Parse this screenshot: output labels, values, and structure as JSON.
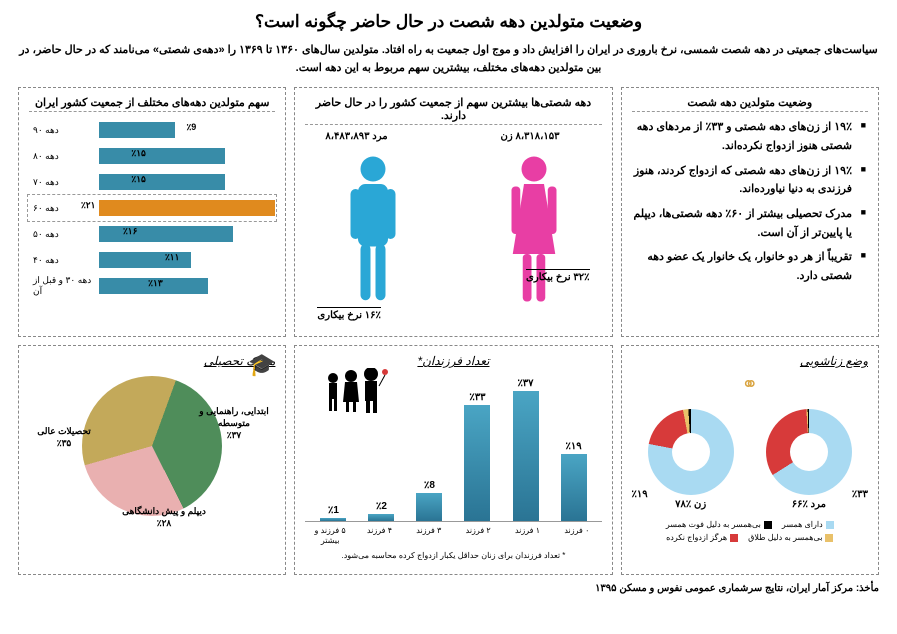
{
  "title": "وضعیت متولدین دهه شصت در حال حاضر چگونه است؟",
  "subtitle": "سیاست‌های جمعیتی در دهه شصت شمسی، نرخ باروری در ایران را افزایش داد و موج اول جمعیت به راه افتاد. متولدین سال‌های ۱۳۶۰ تا ۱۳۶۹ را «دهه‌ی شصتی» می‌نامند که در حال حاضر، در بین متولدین دهه‌های مختلف، بیشترین سهم مربوط به این دهه است.",
  "panel_status": {
    "title": "وضعیت متولدین دهه شصت",
    "bullets": [
      "۱۹٪ از زن‌های دهه شصتی و ۳۳٪ از مردهای دهه شصتی هنوز ازدواج نکرده‌اند.",
      "۱۹٪ از زن‌های دهه شصتی که ازدواج کردند، هنوز فرزندی به دنیا نیاورده‌اند.",
      "مدرک تحصیلی بیشتر از ۶۰٪ دهه شصتی‌ها، دیپلم یا پایین‌تر از آن است.",
      "تقریباً از هر دو خانوار، یک خانوار یک عضو دهه شصتی دارد."
    ]
  },
  "panel_center": {
    "title": "دهه شصتی‌ها بیشترین سهم از جمعیت کشور را در حال حاضر دارند.",
    "male_top": "مرد   ۸،۴۸۳،۸۹۳",
    "female_top": "۸،۳۱۸،۱۵۳   زن",
    "male_unemp": "۱۶٪ نرخ بیکاری",
    "female_unemp": "۳۲٪ نرخ بیکاری",
    "male_color": "#2aa7d6",
    "female_color": "#e83ea4"
  },
  "panel_hbar": {
    "title": "سهم متولدین دهه‌های مختلف از جمعیت کشور ایران",
    "type": "horizontal_bar",
    "max": 21,
    "bar_color": "#388ca8",
    "highlight_color": "#e08a1e",
    "rows": [
      {
        "label": "دهه ۹۰",
        "val": "٪9",
        "pct": 9,
        "hl": false
      },
      {
        "label": "دهه ۸۰",
        "val": "٪۱۵",
        "pct": 15,
        "hl": false
      },
      {
        "label": "دهه ۷۰",
        "val": "٪۱۵",
        "pct": 15,
        "hl": false
      },
      {
        "label": "دهه ۶۰",
        "val": "٪۲۱",
        "pct": 21,
        "hl": true
      },
      {
        "label": "دهه ۵۰",
        "val": "٪۱۶",
        "pct": 16,
        "hl": false
      },
      {
        "label": "دهه ۴۰",
        "val": "٪۱۱",
        "pct": 11,
        "hl": false
      },
      {
        "label": "دهه ۳۰ و قبل از آن",
        "val": "٪۱۳",
        "pct": 13,
        "hl": false
      }
    ]
  },
  "panel_marital": {
    "title": "وضع زناشویی",
    "rings_icon_color": "#d9a441",
    "male_label": "مرد",
    "female_label": "زن",
    "male_center": "٪۶۶",
    "female_center": "٪۷۸",
    "male_red": "٪۳۳",
    "female_red": "٪۱۹",
    "colors": {
      "married": "#a9daf2",
      "never": "#d73a3a",
      "divorced": "#e9c16a",
      "widowed": "#000000"
    },
    "male_slices": {
      "married": 66,
      "never": 33,
      "widowed": 0.5,
      "divorced": 0.5
    },
    "female_slices": {
      "married": 78,
      "never": 19,
      "widowed": 1,
      "divorced": 2
    },
    "legend": [
      {
        "c": "#a9daf2",
        "t": "دارای همسر"
      },
      {
        "c": "#000000",
        "t": "بی‌همسر به دلیل فوت همسر"
      },
      {
        "c": "#e9c16a",
        "t": "بی‌همسر به دلیل طلاق"
      },
      {
        "c": "#d73a3a",
        "t": "هرگز ازدواج نکرده"
      }
    ]
  },
  "panel_children": {
    "title": "تعداد فرزندان*",
    "type": "vertical_bar",
    "max": 37,
    "bar_color_top": "#4aa5c4",
    "bar_color_bot": "#2a7494",
    "cols": [
      {
        "lbl": "۰ فرزند",
        "val": "٪۱۹",
        "pct": 19
      },
      {
        "lbl": "۱ فرزند",
        "val": "٪۳۷",
        "pct": 37
      },
      {
        "lbl": "۲ فرزند",
        "val": "٪۳۳",
        "pct": 33
      },
      {
        "lbl": "۳ فرزند",
        "val": "٪8",
        "pct": 8
      },
      {
        "lbl": "۴ فرزند",
        "val": "٪2",
        "pct": 2
      },
      {
        "lbl": "۵ فرزند و بیشتر",
        "val": "٪1",
        "pct": 1
      }
    ],
    "footnote": "* تعداد فرزندان برای زنان حداقل یکبار ازدواج کرده محاسبه می‌شود."
  },
  "panel_edu": {
    "title": "مدرک تحصیلی",
    "type": "pie",
    "slices": [
      {
        "label": "ابتدایی، راهنمایی و متوسطه",
        "sub": "٪۳۷",
        "pct": 37,
        "color": "#4f8d5a"
      },
      {
        "label": "دیپلم و پیش دانشگاهی",
        "sub": "٪۲۸",
        "pct": 28,
        "color": "#e9b0b0"
      },
      {
        "label": "تحصیلات عالی",
        "sub": "٪۳۵",
        "pct": 35,
        "color": "#c3a95a"
      }
    ]
  },
  "source": "مأخذ: مرکز آمار ایران، نتایج سرشماری عمومی نفوس و مسکن ۱۳۹۵"
}
